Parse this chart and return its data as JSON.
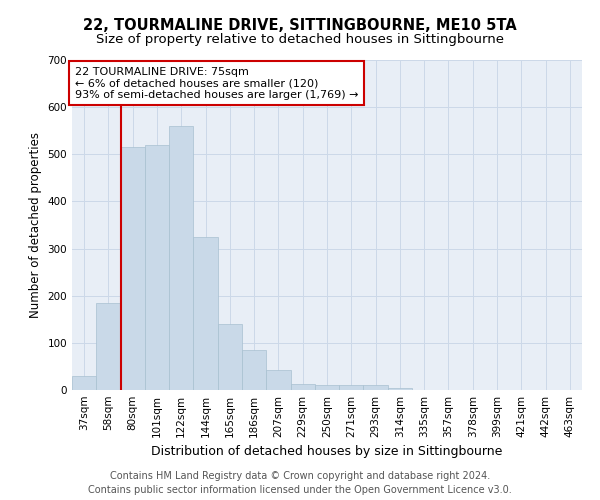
{
  "title": "22, TOURMALINE DRIVE, SITTINGBOURNE, ME10 5TA",
  "subtitle": "Size of property relative to detached houses in Sittingbourne",
  "xlabel": "Distribution of detached houses by size in Sittingbourne",
  "ylabel": "Number of detached properties",
  "categories": [
    "37sqm",
    "58sqm",
    "80sqm",
    "101sqm",
    "122sqm",
    "144sqm",
    "165sqm",
    "186sqm",
    "207sqm",
    "229sqm",
    "250sqm",
    "271sqm",
    "293sqm",
    "314sqm",
    "335sqm",
    "357sqm",
    "378sqm",
    "399sqm",
    "421sqm",
    "442sqm",
    "463sqm"
  ],
  "values": [
    30,
    185,
    515,
    520,
    560,
    325,
    140,
    85,
    42,
    13,
    10,
    10,
    10,
    5,
    1,
    0,
    0,
    0,
    0,
    0,
    0
  ],
  "bar_color": "#c9d9e8",
  "bar_edge_color": "#a8c0d0",
  "bar_linewidth": 0.5,
  "red_line_index": 1.5,
  "annotation_text": "22 TOURMALINE DRIVE: 75sqm\n← 6% of detached houses are smaller (120)\n93% of semi-detached houses are larger (1,769) →",
  "annotation_box_facecolor": "#ffffff",
  "annotation_box_edgecolor": "#cc0000",
  "ylim": [
    0,
    700
  ],
  "yticks": [
    0,
    100,
    200,
    300,
    400,
    500,
    600,
    700
  ],
  "grid_color": "#ccd8e8",
  "axes_background": "#e8eef6",
  "red_line_color": "#cc0000",
  "footer_line1": "Contains HM Land Registry data © Crown copyright and database right 2024.",
  "footer_line2": "Contains public sector information licensed under the Open Government Licence v3.0.",
  "title_fontsize": 10.5,
  "subtitle_fontsize": 9.5,
  "xlabel_fontsize": 9,
  "ylabel_fontsize": 8.5,
  "tick_fontsize": 7.5,
  "annotation_fontsize": 8,
  "footer_fontsize": 7
}
